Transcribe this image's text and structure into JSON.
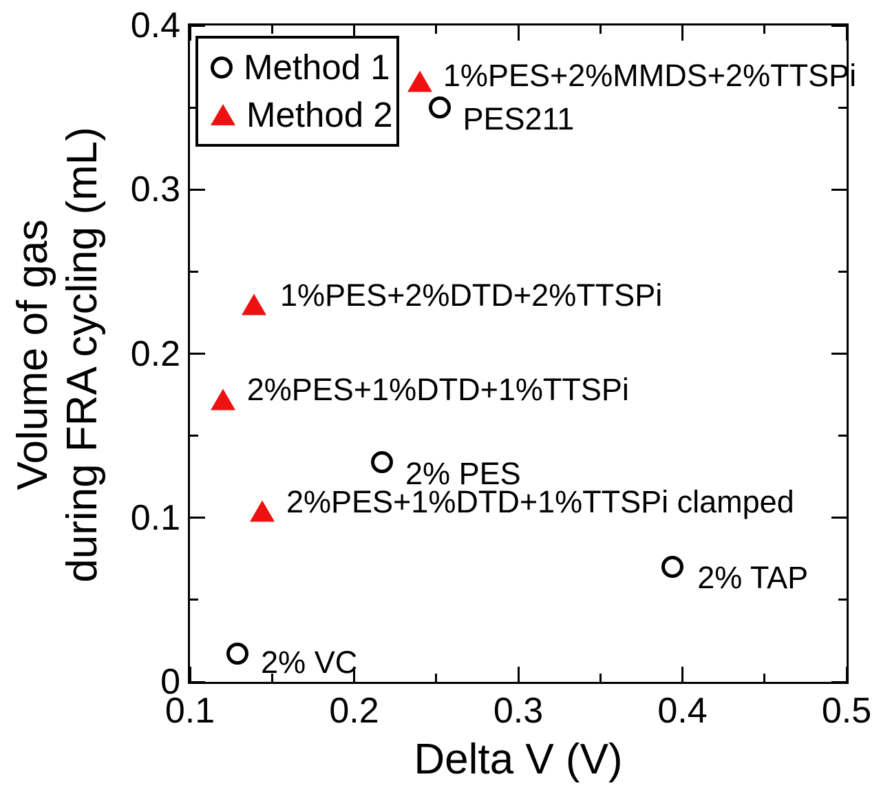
{
  "figure": {
    "background": "#ffffff",
    "axis_color": "#000000",
    "accent_red": "#ee1111"
  },
  "chart_data": {
    "type": "scatter",
    "title": "",
    "xlabel": "Delta V (V)",
    "ylabel_line1": "Volume of gas",
    "ylabel_line2": "during FRA cycling (mL)",
    "xlim": [
      0.1,
      0.5
    ],
    "ylim": [
      0,
      0.4
    ],
    "grid": false,
    "legend_position": "upper-left",
    "x_major_ticks": [
      0.1,
      0.2,
      0.3,
      0.4,
      0.5
    ],
    "x_minor_ticks": [
      0.15,
      0.25,
      0.35,
      0.45
    ],
    "y_major_ticks": [
      0,
      0.1,
      0.2,
      0.3,
      0.4
    ],
    "y_minor_ticks": [
      0.05,
      0.15,
      0.25,
      0.35
    ],
    "x_tick_labels": [
      "0.1",
      "0.2",
      "0.3",
      "0.4",
      "0.5"
    ],
    "y_tick_labels": [
      "0",
      "0.1",
      "0.2",
      "0.3",
      "0.4"
    ],
    "legend": [
      {
        "name": "Method 1",
        "marker": "circle"
      },
      {
        "name": "Method 2",
        "marker": "triangle"
      }
    ],
    "series": [
      {
        "name": "Method 1",
        "marker": "circle",
        "points": [
          {
            "x": 0.252,
            "y": 0.35,
            "label": "PES211",
            "label_dx": 34,
            "label_dy": 17
          },
          {
            "x": 0.217,
            "y": 0.134,
            "label": "2% PES",
            "label_dx": 34,
            "label_dy": 17
          },
          {
            "x": 0.394,
            "y": 0.07,
            "label": "2% TAP",
            "label_dx": 36,
            "label_dy": 16
          },
          {
            "x": 0.129,
            "y": 0.017,
            "label": "2% VC",
            "label_dx": 34,
            "label_dy": 13
          }
        ]
      },
      {
        "name": "Method 2",
        "marker": "triangle",
        "points": [
          {
            "x": 0.24,
            "y": 0.366,
            "label": "1%PES+2%MMDS+2%TTSPi",
            "label_dx": 34,
            "label_dy": -8
          },
          {
            "x": 0.139,
            "y": 0.23,
            "label": "1%PES+2%DTD+2%TTSPi",
            "label_dx": 38,
            "label_dy": -13
          },
          {
            "x": 0.12,
            "y": 0.172,
            "label": "2%PES+1%DTD+1%TTSPi",
            "label_dx": 35,
            "label_dy": -14
          },
          {
            "x": 0.144,
            "y": 0.104,
            "label": "2%PES+1%DTD+1%TTSPi clamped",
            "label_dx": 35,
            "label_dy": -13
          }
        ]
      }
    ]
  }
}
